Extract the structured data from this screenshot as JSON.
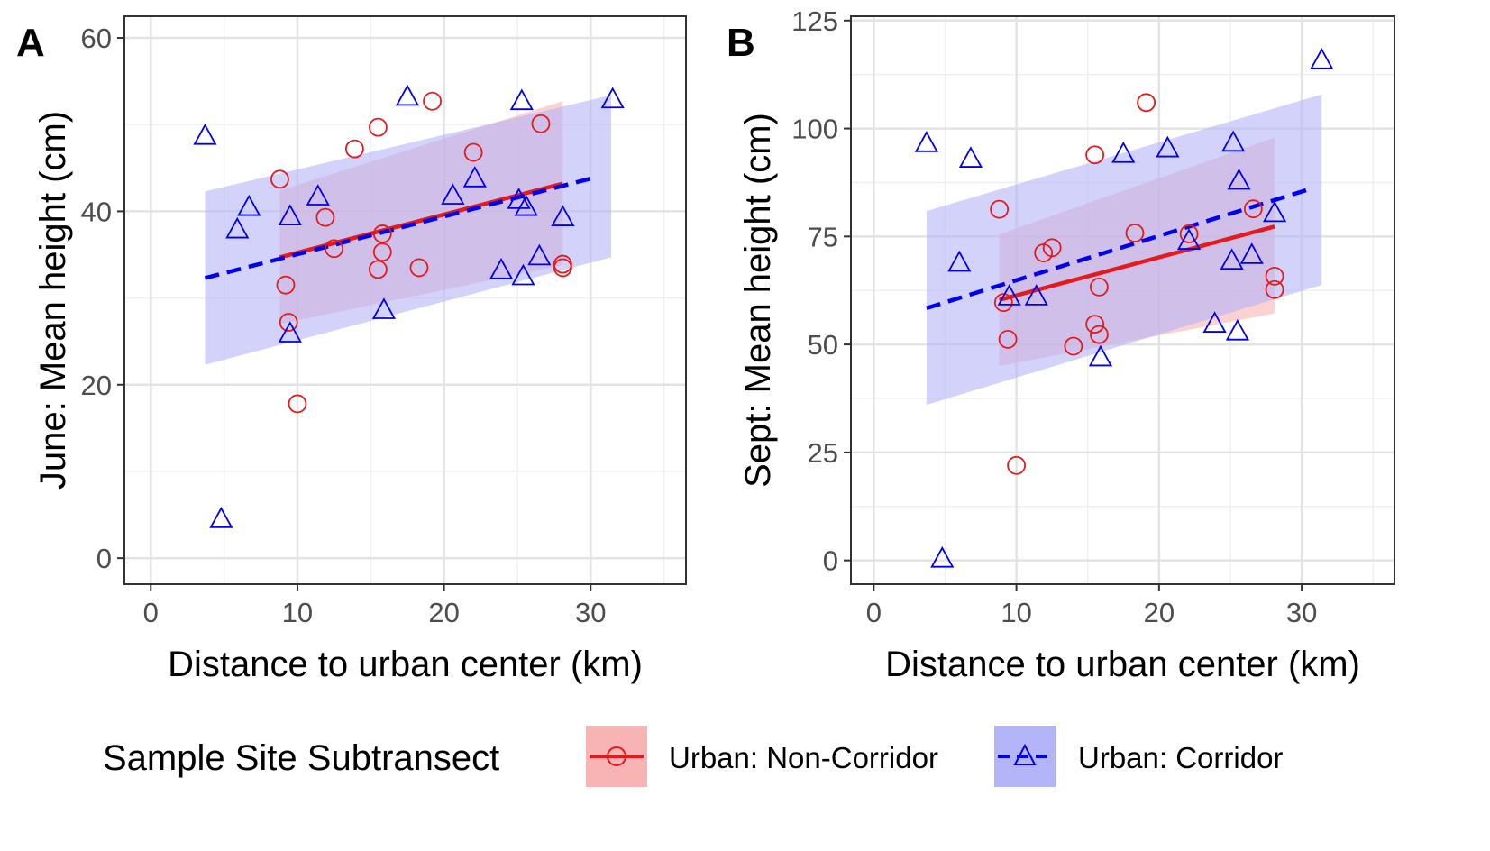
{
  "chart_data": [
    {
      "type": "scatter",
      "panel_tag": "A",
      "xlabel": "Distance to urban center (km)",
      "ylabel": "June: Mean height (cm)",
      "xlim": [
        -1.8,
        36.5
      ],
      "ylim": [
        -3,
        62.5
      ],
      "xticks": [
        0,
        10,
        20,
        30
      ],
      "yticks": [
        0,
        20,
        40,
        60
      ],
      "grid": true,
      "series": [
        {
          "name": "Urban: Non-Corridor",
          "color": "#e41a1c",
          "marker": "circle",
          "line": "solid",
          "points": [
            {
              "x": 8.8,
              "y": 43.7
            },
            {
              "x": 9.2,
              "y": 31.5
            },
            {
              "x": 9.4,
              "y": 27.2
            },
            {
              "x": 10.0,
              "y": 17.8
            },
            {
              "x": 11.9,
              "y": 39.3
            },
            {
              "x": 12.5,
              "y": 35.7
            },
            {
              "x": 13.9,
              "y": 47.2
            },
            {
              "x": 15.5,
              "y": 49.7
            },
            {
              "x": 15.5,
              "y": 33.3
            },
            {
              "x": 15.8,
              "y": 37.4
            },
            {
              "x": 15.8,
              "y": 35.3
            },
            {
              "x": 18.3,
              "y": 33.5
            },
            {
              "x": 19.2,
              "y": 52.7
            },
            {
              "x": 22.0,
              "y": 46.8
            },
            {
              "x": 26.6,
              "y": 50.1
            },
            {
              "x": 28.1,
              "y": 33.9
            },
            {
              "x": 28.1,
              "y": 33.5
            }
          ],
          "fit": {
            "x": [
              8.8,
              28.1
            ],
            "y": [
              34.7,
              43.2
            ]
          },
          "band": {
            "x": [
              8.8,
              28.1
            ],
            "lower": [
              27.0,
              33.8
            ],
            "upper": [
              42.4,
              52.7
            ],
            "fill": "#f8b4b4"
          }
        },
        {
          "name": "Urban: Corridor",
          "color": "#0000ee",
          "marker": "triangle",
          "line": "dashed",
          "points": [
            {
              "x": 3.7,
              "y": 48.8
            },
            {
              "x": 4.8,
              "y": 4.6
            },
            {
              "x": 5.9,
              "y": 38.0
            },
            {
              "x": 6.7,
              "y": 40.6
            },
            {
              "x": 9.5,
              "y": 39.5
            },
            {
              "x": 9.5,
              "y": 26.0
            },
            {
              "x": 11.4,
              "y": 41.8
            },
            {
              "x": 15.9,
              "y": 28.7
            },
            {
              "x": 17.5,
              "y": 53.3
            },
            {
              "x": 20.6,
              "y": 41.9
            },
            {
              "x": 22.1,
              "y": 43.9
            },
            {
              "x": 23.9,
              "y": 33.3
            },
            {
              "x": 25.1,
              "y": 41.4
            },
            {
              "x": 25.3,
              "y": 52.8
            },
            {
              "x": 25.6,
              "y": 40.6
            },
            {
              "x": 25.4,
              "y": 32.6
            },
            {
              "x": 26.5,
              "y": 34.9
            },
            {
              "x": 28.1,
              "y": 39.4
            },
            {
              "x": 31.5,
              "y": 53.0
            }
          ],
          "fit": {
            "x": [
              3.7,
              30.3
            ],
            "y": [
              32.3,
              43.9
            ]
          },
          "band": {
            "x": [
              3.7,
              31.4
            ],
            "lower": [
              22.3,
              34.7
            ],
            "upper": [
              42.3,
              53.4
            ],
            "fill": "#b4b4f8"
          }
        }
      ]
    },
    {
      "type": "scatter",
      "panel_tag": "B",
      "xlabel": "Distance to urban center (km)",
      "ylabel": "Sept: Mean height (cm)",
      "xlim": [
        -1.6,
        36.5
      ],
      "ylim": [
        -5.5,
        126
      ],
      "xticks": [
        0,
        10,
        20,
        30
      ],
      "yticks": [
        0,
        25,
        50,
        75,
        100,
        125
      ],
      "grid": true,
      "series": [
        {
          "name": "Urban: Non-Corridor",
          "color": "#e41a1c",
          "marker": "circle",
          "line": "solid",
          "points": [
            {
              "x": 8.8,
              "y": 81.3
            },
            {
              "x": 9.1,
              "y": 59.7
            },
            {
              "x": 9.4,
              "y": 51.2
            },
            {
              "x": 10.0,
              "y": 22.0
            },
            {
              "x": 11.9,
              "y": 71.2
            },
            {
              "x": 12.5,
              "y": 72.4
            },
            {
              "x": 14.0,
              "y": 49.6
            },
            {
              "x": 15.5,
              "y": 93.9
            },
            {
              "x": 15.5,
              "y": 54.7
            },
            {
              "x": 15.8,
              "y": 52.3
            },
            {
              "x": 15.8,
              "y": 63.3
            },
            {
              "x": 18.3,
              "y": 75.8
            },
            {
              "x": 19.1,
              "y": 106.0
            },
            {
              "x": 22.1,
              "y": 75.6
            },
            {
              "x": 26.6,
              "y": 81.4
            },
            {
              "x": 28.1,
              "y": 65.8
            },
            {
              "x": 28.1,
              "y": 62.7
            }
          ],
          "fit": {
            "x": [
              8.8,
              28.1
            ],
            "y": [
              60.3,
              77.3
            ]
          },
          "band": {
            "x": [
              8.8,
              28.1
            ],
            "lower": [
              45.0,
              57.2
            ],
            "upper": [
              75.5,
              97.9
            ],
            "fill": "#f8b4b4"
          }
        },
        {
          "name": "Urban: Corridor",
          "color": "#0000ee",
          "marker": "triangle",
          "line": "dashed",
          "points": [
            {
              "x": 3.7,
              "y": 96.8
            },
            {
              "x": 4.8,
              "y": 0.6
            },
            {
              "x": 6.0,
              "y": 69.1
            },
            {
              "x": 6.8,
              "y": 93.2
            },
            {
              "x": 9.5,
              "y": 61.3
            },
            {
              "x": 11.4,
              "y": 61.3
            },
            {
              "x": 15.9,
              "y": 47.2
            },
            {
              "x": 17.5,
              "y": 94.3
            },
            {
              "x": 20.6,
              "y": 95.6
            },
            {
              "x": 22.1,
              "y": 74.2
            },
            {
              "x": 23.9,
              "y": 55.0
            },
            {
              "x": 25.1,
              "y": 69.6
            },
            {
              "x": 25.2,
              "y": 96.9
            },
            {
              "x": 25.6,
              "y": 88.1
            },
            {
              "x": 25.5,
              "y": 53.2
            },
            {
              "x": 26.5,
              "y": 70.9
            },
            {
              "x": 28.1,
              "y": 80.6
            },
            {
              "x": 31.4,
              "y": 116.0
            }
          ],
          "fit": {
            "x": [
              3.7,
              30.3
            ],
            "y": [
              58.4,
              85.7
            ]
          },
          "band": {
            "x": [
              3.7,
              31.4
            ],
            "lower": [
              36.0,
              63.8
            ],
            "upper": [
              80.9,
              107.9
            ],
            "fill": "#b4b4f8"
          }
        }
      ]
    }
  ],
  "legend": {
    "title": "Sample Site Subtransect",
    "items": [
      {
        "label": "Urban: Non-Corridor",
        "color": "#e41a1c",
        "fill": "#f8b4b4",
        "marker": "circle",
        "line": "solid"
      },
      {
        "label": "Urban: Corridor",
        "color": "#0000ee",
        "fill": "#b4b4f8",
        "marker": "triangle",
        "line": "dashed"
      }
    ]
  }
}
